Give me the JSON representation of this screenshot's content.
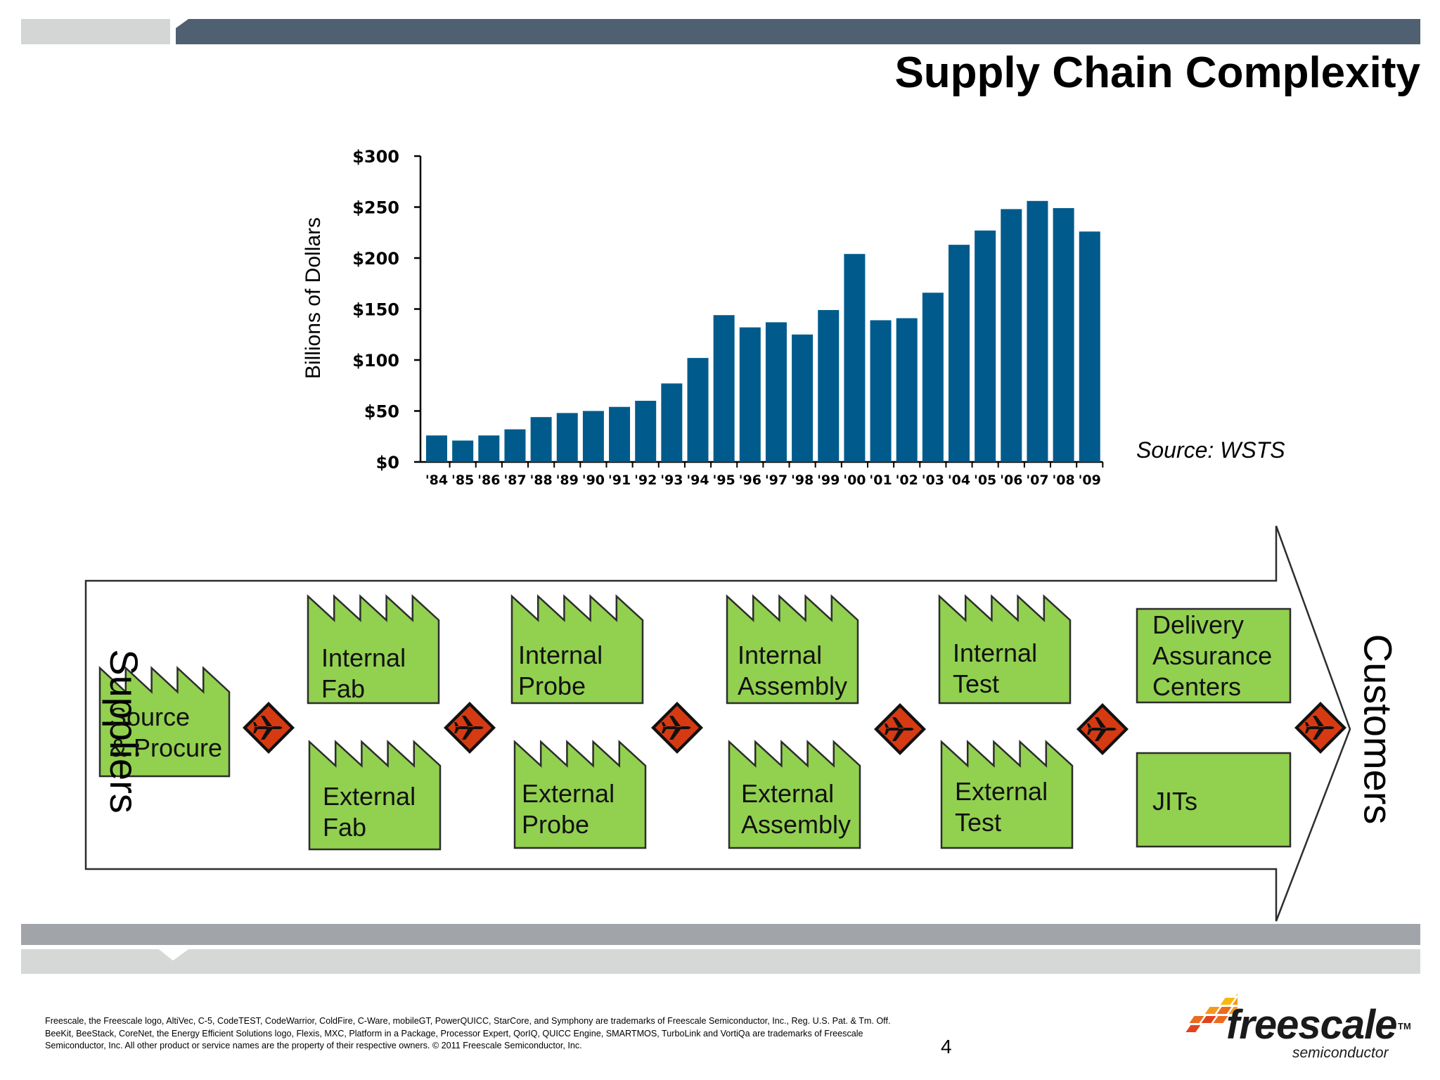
{
  "slide": {
    "title": "Supply Chain Complexity",
    "source_note": "Source: WSTS",
    "page_number": "4",
    "footer_text": "Freescale, the Freescale logo, AltiVec, C-5, CodeTEST, CodeWarrior, ColdFire, C-Ware, mobileGT, PowerQUICC, StarCore, and Symphony are trademarks of Freescale Semiconductor, Inc., Reg. U.S. Pat. & Tm. Off. BeeKit, BeeStack, CoreNet, the Energy Efficient Solutions logo, Flexis, MXC, Platform in a Package, Processor Expert, QorIQ, QUICC Engine, SMARTMOS, TurboLink and VortiQa are trademarks of Freescale Semiconductor, Inc. All other product or service names are the property of their respective owners. © 2011 Freescale Semiconductor, Inc.",
    "logo": {
      "word": "freescale",
      "tm": "TM",
      "sub": "semiconductor"
    }
  },
  "colors": {
    "bar": "#005b8c",
    "box_fill": "#92d050",
    "diamond_fill": "#d63a12",
    "header_dark": "#4f6070",
    "header_light": "#d3d6d5",
    "band_mid": "#a1a4a9",
    "band_light": "#d6d8d7"
  },
  "chart_data": {
    "type": "bar",
    "ylabel": "Billions of Dollars",
    "xlabel": "",
    "ylim": [
      0,
      300
    ],
    "ytick_values": [
      0,
      50,
      100,
      150,
      200,
      250,
      300
    ],
    "ytick_labels": [
      "$0",
      "$50",
      "$100",
      "$150",
      "$200",
      "$250",
      "$300"
    ],
    "categories": [
      "'84",
      "'85",
      "'86",
      "'87",
      "'88",
      "'89",
      "'90",
      "'91",
      "'92",
      "'93",
      "'94",
      "'95",
      "'96",
      "'97",
      "'98",
      "'99",
      "'00",
      "'01",
      "'02",
      "'03",
      "'04",
      "'05",
      "'06",
      "'07",
      "'08",
      "'09"
    ],
    "values": [
      26,
      21,
      26,
      32,
      44,
      48,
      50,
      54,
      60,
      77,
      102,
      144,
      132,
      137,
      125,
      149,
      204,
      139,
      141,
      166,
      213,
      227,
      248,
      256,
      249,
      226
    ]
  },
  "flow": {
    "left_label": "Suppliers",
    "right_label": "Customers",
    "nodes": {
      "source_procure": {
        "line1": "Source",
        "line2": "& Procure"
      },
      "internal_fab": {
        "line1": "Internal",
        "line2": "Fab"
      },
      "external_fab": {
        "line1": "External",
        "line2": "Fab"
      },
      "internal_probe": {
        "line1": "Internal",
        "line2": "Probe"
      },
      "external_probe": {
        "line1": "External",
        "line2": "Probe"
      },
      "internal_assembly": {
        "line1": "Internal",
        "line2": "Assembly"
      },
      "external_assembly": {
        "line1": "External",
        "line2": "Assembly"
      },
      "internal_test": {
        "line1": "Internal",
        "line2": "Test"
      },
      "external_test": {
        "line1": "External",
        "line2": "Test"
      },
      "delivery_assurance": {
        "line1": "Delivery",
        "line2": "Assurance",
        "line3": "Centers"
      },
      "jits": {
        "line1": "JITs"
      }
    },
    "transport_icons": [
      "airplane-icon",
      "airplane-icon",
      "airplane-icon",
      "airplane-icon",
      "airplane-icon",
      "airplane-icon"
    ]
  }
}
